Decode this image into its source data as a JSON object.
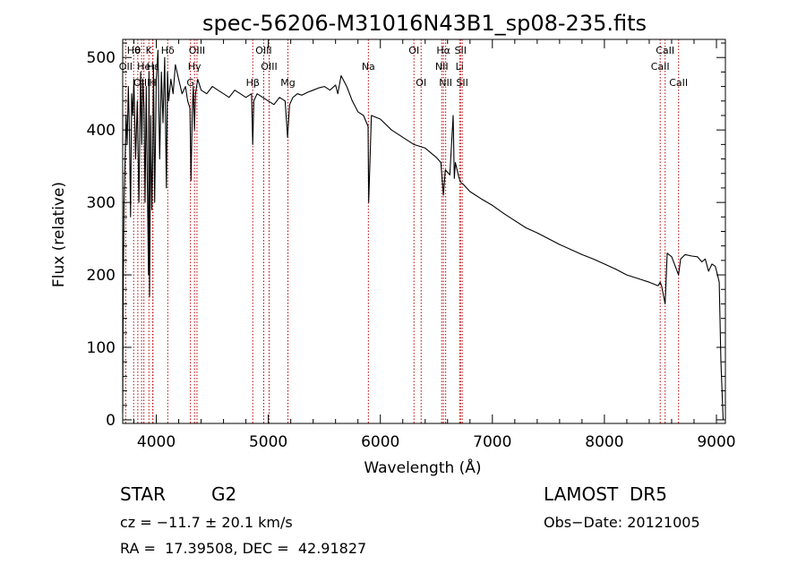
{
  "chart_data": {
    "type": "line",
    "title": "spec-56206-M31016N43B1_sp08-235.fits",
    "xlabel": "Wavelength (Å)",
    "ylabel": "Flux (relative)",
    "xlim": [
      3700,
      9080
    ],
    "ylim": [
      -5,
      525
    ],
    "xticks": [
      4000,
      5000,
      6000,
      7000,
      8000,
      9000
    ],
    "yticks": [
      0,
      100,
      200,
      300,
      400,
      500
    ],
    "grid": false,
    "series": [
      {
        "color": "#000000",
        "x": [
          3700,
          3705,
          3712,
          3720,
          3730,
          3740,
          3750,
          3760,
          3770,
          3780,
          3790,
          3800,
          3815,
          3830,
          3845,
          3860,
          3870,
          3880,
          3890,
          3900,
          3910,
          3920,
          3930,
          3935,
          3940,
          3950,
          3960,
          3968,
          3975,
          3985,
          4000,
          4015,
          4030,
          4045,
          4060,
          4075,
          4090,
          4100,
          4110,
          4130,
          4150,
          4170,
          4200,
          4230,
          4260,
          4280,
          4300,
          4310,
          4320,
          4330,
          4340,
          4350,
          4370,
          4400,
          4450,
          4500,
          4550,
          4600,
          4650,
          4700,
          4750,
          4800,
          4850,
          4861,
          4870,
          4900,
          4950,
          5000,
          5050,
          5100,
          5150,
          5172,
          5190,
          5220,
          5260,
          5300,
          5350,
          5400,
          5450,
          5500,
          5550,
          5600,
          5620,
          5650,
          5700,
          5750,
          5800,
          5850,
          5890,
          5896,
          5920,
          6000,
          6100,
          6200,
          6300,
          6400,
          6500,
          6540,
          6563,
          6580,
          6620,
          6650,
          6660,
          6670,
          6700,
          6716,
          6740,
          6800,
          6900,
          7000,
          7100,
          7200,
          7300,
          7400,
          7500,
          7600,
          7700,
          7800,
          7900,
          8000,
          8100,
          8200,
          8300,
          8400,
          8480,
          8498,
          8510,
          8542,
          8560,
          8600,
          8662,
          8680,
          8720,
          8780,
          8830,
          8870,
          8900,
          8930,
          8960,
          8990,
          9010,
          9025,
          9040,
          9060
        ],
        "y": [
          10,
          180,
          300,
          350,
          420,
          380,
          460,
          400,
          280,
          450,
          420,
          470,
          360,
          440,
          300,
          480,
          380,
          470,
          430,
          300,
          460,
          330,
          200,
          480,
          170,
          420,
          290,
          360,
          490,
          300,
          470,
          510,
          360,
          480,
          410,
          500,
          320,
          480,
          440,
          470,
          450,
          490,
          470,
          450,
          460,
          440,
          430,
          330,
          420,
          460,
          400,
          450,
          470,
          455,
          450,
          460,
          455,
          450,
          445,
          455,
          450,
          445,
          450,
          380,
          440,
          450,
          445,
          440,
          435,
          445,
          440,
          390,
          435,
          445,
          450,
          448,
          452,
          455,
          458,
          460,
          455,
          462,
          450,
          475,
          460,
          440,
          425,
          420,
          405,
          300,
          420,
          415,
          400,
          390,
          380,
          375,
          362,
          355,
          310,
          345,
          338,
          420,
          333,
          355,
          335,
          328,
          325,
          315,
          305,
          296,
          285,
          275,
          265,
          258,
          250,
          242,
          235,
          228,
          222,
          215,
          208,
          200,
          195,
          190,
          185,
          190,
          185,
          160,
          230,
          225,
          200,
          222,
          228,
          226,
          225,
          218,
          222,
          205,
          215,
          212,
          200,
          190,
          80,
          0
        ]
      }
    ],
    "line_markers": [
      {
        "label": "Hθ",
        "x": 3798,
        "row": 1
      },
      {
        "label": "OII",
        "x": 3727,
        "row": 2
      },
      {
        "label": "OIII",
        "x": 3869,
        "row": 3
      },
      {
        "label": "He",
        "x": 3889,
        "row": 2
      },
      {
        "label": "θ",
        "x": 3835,
        "row": 1
      },
      {
        "label": "K",
        "x": 3934,
        "row": 1
      },
      {
        "label": "Hε",
        "x": 3970,
        "row": 2
      },
      {
        "label": "H",
        "x": 3968,
        "row": 3
      },
      {
        "label": "Hδ",
        "x": 4102,
        "row": 1
      },
      {
        "label": "OIII",
        "x": 4363,
        "row": 1
      },
      {
        "label": "Hγ",
        "x": 4341,
        "row": 2
      },
      {
        "label": "G",
        "x": 4305,
        "row": 3
      },
      {
        "label": "OIII",
        "x": 4959,
        "row": 1
      },
      {
        "label": "OIII",
        "x": 5007,
        "row": 2
      },
      {
        "label": "Hβ",
        "x": 4861,
        "row": 3
      },
      {
        "label": "Mg",
        "x": 5175,
        "row": 3
      },
      {
        "label": "Na",
        "x": 5893,
        "row": 2
      },
      {
        "label": "OI",
        "x": 6300,
        "row": 1
      },
      {
        "label": "OI",
        "x": 6364,
        "row": 3
      },
      {
        "label": "Hα",
        "x": 6563,
        "row": 1
      },
      {
        "label": "NII",
        "x": 6548,
        "row": 2
      },
      {
        "label": "NII",
        "x": 6583,
        "row": 3
      },
      {
        "label": "SII",
        "x": 6716,
        "row": 1
      },
      {
        "label": "Li",
        "x": 6708,
        "row": 2
      },
      {
        "label": "SII",
        "x": 6731,
        "row": 3
      },
      {
        "label": "CaII",
        "x": 8542,
        "row": 1
      },
      {
        "label": "CaII",
        "x": 8498,
        "row": 2
      },
      {
        "label": "CaII",
        "x": 8662,
        "row": 3
      }
    ]
  },
  "info": {
    "class": "STAR",
    "subclass": "G2",
    "survey": "LAMOST  DR5",
    "cz": "cz = −11.7 ± 20.1 km/s",
    "obs_date": "Obs−Date: 20121005",
    "coords": "RA =  17.39508, DEC =  42.91827"
  }
}
